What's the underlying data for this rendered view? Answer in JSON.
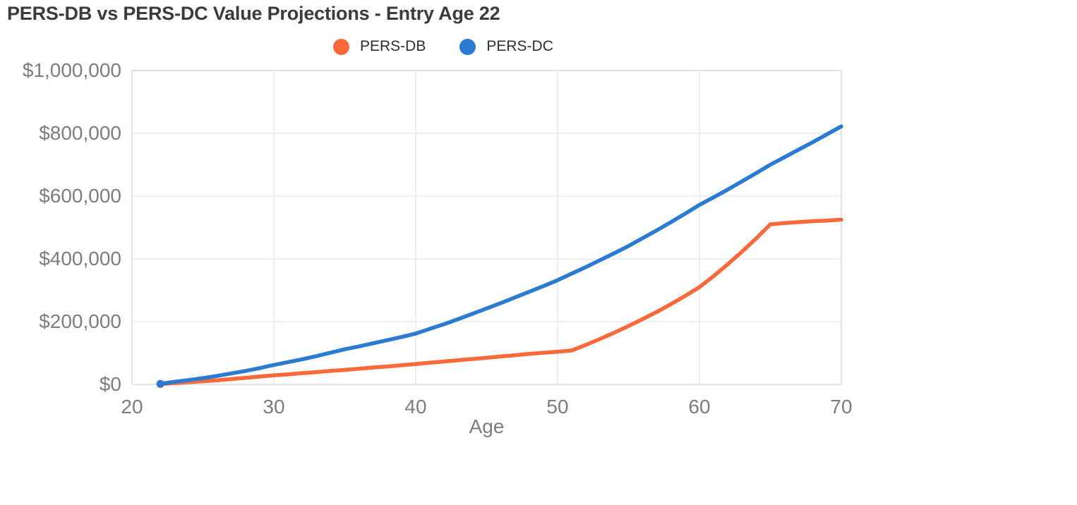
{
  "chart_data": {
    "type": "line",
    "title": "PERS-DB vs PERS-DC Value Projections - Entry Age 22",
    "xlabel": "Age",
    "ylabel": "",
    "x_range": [
      20,
      70
    ],
    "y_range": [
      0,
      1000000
    ],
    "grid": true,
    "legend_position": "top-center",
    "x_ticks": [
      {
        "value": 20,
        "label": "20"
      },
      {
        "value": 30,
        "label": "30"
      },
      {
        "value": 40,
        "label": "40"
      },
      {
        "value": 50,
        "label": "50"
      },
      {
        "value": 60,
        "label": "60"
      },
      {
        "value": 70,
        "label": "70"
      }
    ],
    "y_ticks": [
      {
        "value": 0,
        "label": "$0"
      },
      {
        "value": 200000,
        "label": "$200,000"
      },
      {
        "value": 400000,
        "label": "$400,000"
      },
      {
        "value": 600000,
        "label": "$600,000"
      },
      {
        "value": 800000,
        "label": "$800,000"
      },
      {
        "value": 1000000,
        "label": "$1,000,000"
      }
    ],
    "x": [
      22,
      23,
      24,
      25,
      26,
      27,
      28,
      29,
      30,
      31,
      32,
      33,
      34,
      35,
      36,
      37,
      38,
      39,
      40,
      41,
      42,
      43,
      44,
      45,
      46,
      47,
      48,
      49,
      50,
      51,
      52,
      53,
      54,
      55,
      56,
      57,
      58,
      59,
      60,
      61,
      62,
      63,
      64,
      65,
      66,
      67,
      68,
      69,
      70
    ],
    "series": [
      {
        "name": "PERS-DB",
        "color": "#f9693a",
        "values": [
          1000,
          4000,
          7000,
          10000,
          13000,
          17000,
          21000,
          25000,
          29000,
          32000,
          36000,
          39000,
          43000,
          46000,
          50000,
          54000,
          57000,
          61000,
          65000,
          69000,
          73000,
          77000,
          81000,
          85000,
          89000,
          93000,
          97000,
          101000,
          104000,
          108000,
          126000,
          145000,
          165000,
          186000,
          208000,
          231000,
          256000,
          282000,
          310000,
          345000,
          383000,
          423000,
          465000,
          510000,
          514000,
          517000,
          520000,
          522000,
          525000
        ]
      },
      {
        "name": "PERS-DC",
        "color": "#2b7bd2",
        "values": [
          2000,
          8000,
          14000,
          20000,
          27000,
          35000,
          43000,
          52000,
          62000,
          71000,
          80000,
          90000,
          101000,
          112000,
          121000,
          131000,
          141000,
          151000,
          162000,
          177000,
          192000,
          208000,
          225000,
          242000,
          259000,
          277000,
          295000,
          313000,
          332000,
          353000,
          374000,
          396000,
          418000,
          441000,
          466000,
          491000,
          517000,
          544000,
          572000,
          596000,
          621000,
          647000,
          673000,
          700000,
          724000,
          748000,
          772000,
          797000,
          822000
        ]
      }
    ],
    "style": {
      "grid_color": "#e6eaf6",
      "border_color": "#d8dff0",
      "tick_color": "#7d7d7d",
      "title_color": "#3b3b3b",
      "background": "#ffffff"
    }
  }
}
